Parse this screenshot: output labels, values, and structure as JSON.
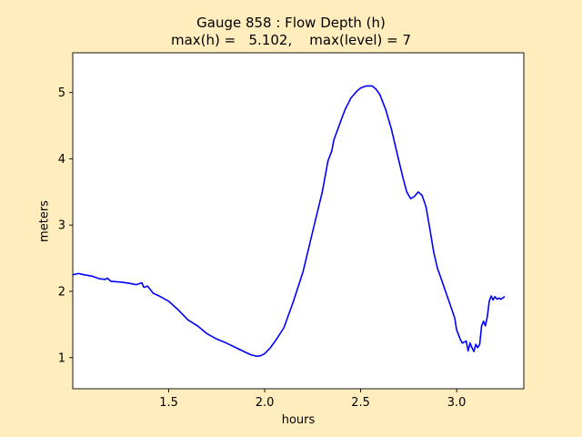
{
  "chart_data": {
    "type": "line",
    "title": "Gauge 858 : Flow Depth (h)",
    "subtitle": "max(h) =   5.102,    max(level) = 7",
    "xlabel": "hours",
    "ylabel": "meters",
    "xlim": [
      1.0,
      3.35
    ],
    "ylim": [
      0.53,
      5.6
    ],
    "xticks": [
      1.5,
      2.0,
      2.5,
      3.0
    ],
    "xtick_labels": [
      "1.5",
      "2.0",
      "2.5",
      "3.0"
    ],
    "yticks": [
      1,
      2,
      3,
      4,
      5
    ],
    "ytick_labels": [
      "1",
      "2",
      "3",
      "4",
      "5"
    ],
    "grid": false,
    "series": [
      {
        "color": "#0000ff",
        "x": [
          1.0,
          1.03,
          1.06,
          1.1,
          1.14,
          1.17,
          1.18,
          1.2,
          1.25,
          1.3,
          1.33,
          1.36,
          1.37,
          1.39,
          1.42,
          1.45,
          1.5,
          1.55,
          1.6,
          1.65,
          1.7,
          1.75,
          1.8,
          1.85,
          1.9,
          1.93,
          1.96,
          1.98,
          2.0,
          2.03,
          2.06,
          2.1,
          2.15,
          2.2,
          2.25,
          2.3,
          2.33,
          2.35,
          2.36,
          2.38,
          2.4,
          2.42,
          2.45,
          2.48,
          2.5,
          2.53,
          2.56,
          2.58,
          2.6,
          2.63,
          2.66,
          2.69,
          2.72,
          2.74,
          2.76,
          2.78,
          2.8,
          2.82,
          2.84,
          2.86,
          2.88,
          2.9,
          2.93,
          2.96,
          2.99,
          3.0,
          3.02,
          3.03,
          3.05,
          3.06,
          3.07,
          3.08,
          3.09,
          3.1,
          3.11,
          3.12,
          3.13,
          3.14,
          3.15,
          3.16,
          3.17,
          3.18,
          3.19,
          3.2,
          3.21,
          3.22,
          3.23,
          3.24,
          3.25
        ],
        "y": [
          2.25,
          2.27,
          2.25,
          2.23,
          2.19,
          2.18,
          2.2,
          2.15,
          2.14,
          2.12,
          2.1,
          2.13,
          2.06,
          2.08,
          1.97,
          1.93,
          1.85,
          1.72,
          1.57,
          1.48,
          1.36,
          1.28,
          1.22,
          1.15,
          1.08,
          1.04,
          1.02,
          1.03,
          1.06,
          1.15,
          1.27,
          1.45,
          1.85,
          2.3,
          2.9,
          3.5,
          3.97,
          4.12,
          4.28,
          4.44,
          4.6,
          4.75,
          4.92,
          5.02,
          5.07,
          5.1,
          5.1,
          5.05,
          4.97,
          4.75,
          4.45,
          4.08,
          3.72,
          3.5,
          3.4,
          3.43,
          3.5,
          3.45,
          3.28,
          2.95,
          2.6,
          2.35,
          2.1,
          1.85,
          1.6,
          1.42,
          1.27,
          1.22,
          1.25,
          1.1,
          1.22,
          1.15,
          1.09,
          1.2,
          1.15,
          1.2,
          1.48,
          1.55,
          1.48,
          1.62,
          1.85,
          1.93,
          1.87,
          1.92,
          1.88,
          1.9,
          1.88,
          1.9,
          1.92
        ]
      }
    ]
  }
}
